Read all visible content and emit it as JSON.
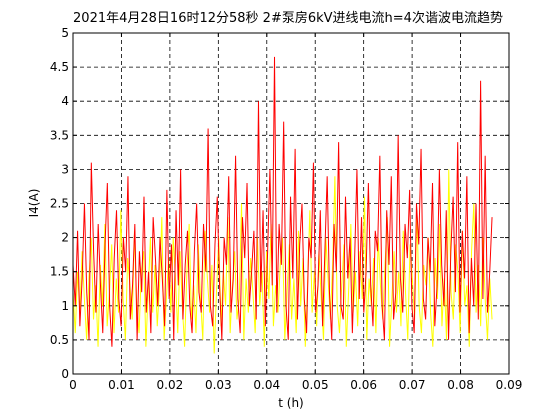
{
  "chart_data": {
    "type": "line",
    "title": "2021年4月28日16时12分58秒  2#泵房6kV进线电流h=4次谐波电流趋势",
    "xlabel": "t (h)",
    "ylabel": "I4(A)",
    "xlim": [
      0,
      0.09
    ],
    "ylim": [
      0,
      5
    ],
    "xticks": [
      "0",
      "0.01",
      "0.02",
      "0.03",
      "0.04",
      "0.05",
      "0.06",
      "0.07",
      "0.08",
      "0.09"
    ],
    "yticks": [
      "0",
      "0.5",
      "1",
      "1.5",
      "2",
      "2.5",
      "3",
      "3.5",
      "4",
      "4.5",
      "5"
    ],
    "grid": true,
    "grid_style": "dashed",
    "legend": "none",
    "series": [
      {
        "color": "#ffff00",
        "x_range": [
          0,
          0.0865
        ],
        "values": [
          1.2,
          0.6,
          1.5,
          0.9,
          1.8,
          1.1,
          0.5,
          1.4,
          2.0,
          0.8,
          1.3,
          0.4,
          1.6,
          1.0,
          2.2,
          0.7,
          1.2,
          1.9,
          0.6,
          1.4,
          0.9,
          2.4,
          1.1,
          0.5,
          1.7,
          1.3,
          0.8,
          2.1,
          1.0,
          0.6,
          1.5,
          1.8,
          0.4,
          1.2,
          2.0,
          0.9,
          1.6,
          0.7,
          1.3,
          2.3,
          0.5,
          1.1,
          1.7,
          0.9,
          2.0,
          1.4,
          0.6,
          1.8,
          1.0,
          0.4,
          1.5,
          2.2,
          0.8,
          1.3,
          0.6,
          1.9,
          1.1,
          0.5,
          2.1,
          1.4,
          0.9,
          1.6,
          0.3,
          1.2,
          2.0,
          0.7,
          1.5,
          1.0,
          2.3,
          0.6,
          1.3,
          1.8,
          0.8,
          1.1,
          2.5,
          0.5,
          1.4,
          0.9,
          1.7,
          1.2,
          0.6,
          2.0,
          1.0,
          1.5,
          0.4,
          1.8,
          1.1,
          2.2,
          0.7,
          1.3,
          0.9,
          1.6,
          2.0,
          0.5,
          1.2,
          1.9,
          0.8,
          1.4,
          0.6,
          2.1,
          1.0,
          1.7,
          0.4,
          1.3,
          2.4,
          0.9,
          1.5,
          0.7,
          1.8,
          1.1,
          0.5,
          2.0,
          1.4,
          0.8,
          1.6,
          2.9,
          1.0,
          0.6,
          1.3,
          1.9,
          0.4,
          1.2,
          2.2,
          0.9,
          1.5,
          0.7,
          1.8,
          1.1,
          2.6,
          0.5,
          1.4,
          1.0,
          1.7,
          0.6,
          2.0,
          1.3,
          0.8,
          1.6,
          2.3,
          0.4,
          1.1,
          1.8,
          0.9,
          1.5,
          0.7,
          2.1,
          1.2,
          0.5,
          1.9,
          1.4,
          0.8,
          2.4,
          1.0,
          0.6,
          1.6,
          1.3,
          2.0,
          0.9,
          0.4,
          1.7,
          1.1,
          2.2,
          0.7,
          1.4,
          0.5,
          3.0,
          1.2,
          0.8,
          1.9,
          1.5,
          0.6,
          2.1,
          1.0,
          1.3,
          0.4,
          1.8,
          2.5,
          0.9,
          1.6,
          0.7,
          2.0,
          1.1,
          0.5,
          1.4,
          0.8
        ]
      },
      {
        "color": "#ff0000",
        "x_range": [
          0,
          0.0865
        ],
        "values": [
          1.6,
          1.0,
          2.1,
          0.7,
          1.4,
          2.5,
          1.2,
          0.5,
          3.1,
          1.8,
          0.9,
          2.2,
          1.3,
          0.6,
          1.9,
          2.8,
          1.0,
          0.4,
          1.7,
          2.4,
          1.1,
          0.7,
          2.0,
          1.5,
          2.9,
          0.8,
          1.3,
          2.2,
          0.5,
          1.8,
          1.2,
          2.6,
          0.9,
          1.5,
          0.6,
          2.3,
          1.7,
          1.0,
          2.0,
          1.4,
          0.7,
          2.7,
          1.1,
          1.9,
          0.5,
          2.4,
          1.3,
          3.0,
          0.8,
          1.6,
          2.1,
          1.0,
          0.6,
          1.8,
          2.5,
          1.2,
          0.9,
          2.2,
          1.5,
          3.6,
          1.0,
          0.7,
          1.9,
          2.6,
          1.3,
          0.5,
          2.0,
          1.6,
          2.9,
          0.9,
          1.4,
          3.2,
          1.1,
          0.6,
          2.3,
          1.7,
          2.8,
          1.0,
          1.5,
          2.1,
          0.8,
          4.0,
          1.2,
          2.4,
          0.7,
          1.8,
          3.0,
          1.3,
          4.65,
          0.9,
          2.2,
          1.6,
          3.7,
          1.0,
          0.5,
          2.6,
          1.4,
          3.3,
          0.8,
          1.9,
          2.5,
          1.1,
          0.6,
          2.0,
          1.7,
          3.1,
          0.9,
          1.3,
          2.4,
          0.7,
          1.8,
          2.9,
          1.2,
          0.5,
          2.2,
          1.5,
          3.4,
          1.0,
          0.8,
          2.6,
          1.4,
          2.0,
          0.6,
          1.7,
          3.0,
          1.1,
          2.3,
          0.9,
          1.5,
          2.8,
          1.3,
          0.7,
          2.1,
          1.8,
          3.2,
          1.0,
          0.5,
          2.4,
          1.6,
          2.9,
          0.8,
          1.2,
          3.5,
          1.4,
          0.9,
          2.2,
          1.7,
          2.7,
          1.0,
          0.6,
          2.5,
          1.9,
          3.3,
          1.1,
          0.8,
          2.0,
          1.5,
          2.8,
          0.7,
          1.3,
          3.0,
          1.6,
          1.0,
          2.4,
          0.5,
          1.8,
          2.6,
          1.2,
          3.4,
          0.9,
          2.1,
          1.4,
          2.9,
          0.6,
          1.7,
          1.0,
          2.5,
          0.8,
          4.3,
          1.1,
          3.2,
          0.9,
          1.5,
          2.3
        ]
      },
      {
        "color": "#00cc00",
        "x_range": [
          0,
          0.0865
        ],
        "values": [
          0.0,
          0.0
        ]
      }
    ]
  }
}
